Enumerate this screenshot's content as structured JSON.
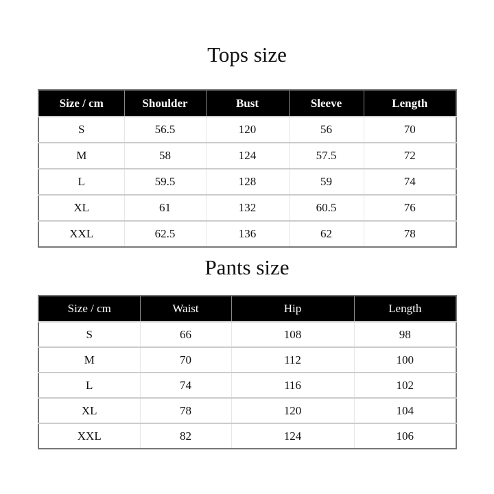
{
  "tops": {
    "title": "Tops size",
    "headers": [
      "Size / cm",
      "Shoulder",
      "Bust",
      "Sleeve",
      "Length"
    ],
    "rows": [
      [
        "S",
        "56.5",
        "120",
        "56",
        "70"
      ],
      [
        "M",
        "58",
        "124",
        "57.5",
        "72"
      ],
      [
        "L",
        "59.5",
        "128",
        "59",
        "74"
      ],
      [
        "XL",
        "61",
        "132",
        "60.5",
        "76"
      ],
      [
        "XXL",
        "62.5",
        "136",
        "62",
        "78"
      ]
    ]
  },
  "pants": {
    "title": "Pants size",
    "headers": [
      "Size / cm",
      "Waist",
      "Hip",
      "Length"
    ],
    "rows": [
      [
        "S",
        "66",
        "108",
        "98"
      ],
      [
        "M",
        "70",
        "112",
        "100"
      ],
      [
        "L",
        "74",
        "116",
        "102"
      ],
      [
        "XL",
        "78",
        "120",
        "104"
      ],
      [
        "XXL",
        "82",
        "124",
        "106"
      ]
    ]
  }
}
